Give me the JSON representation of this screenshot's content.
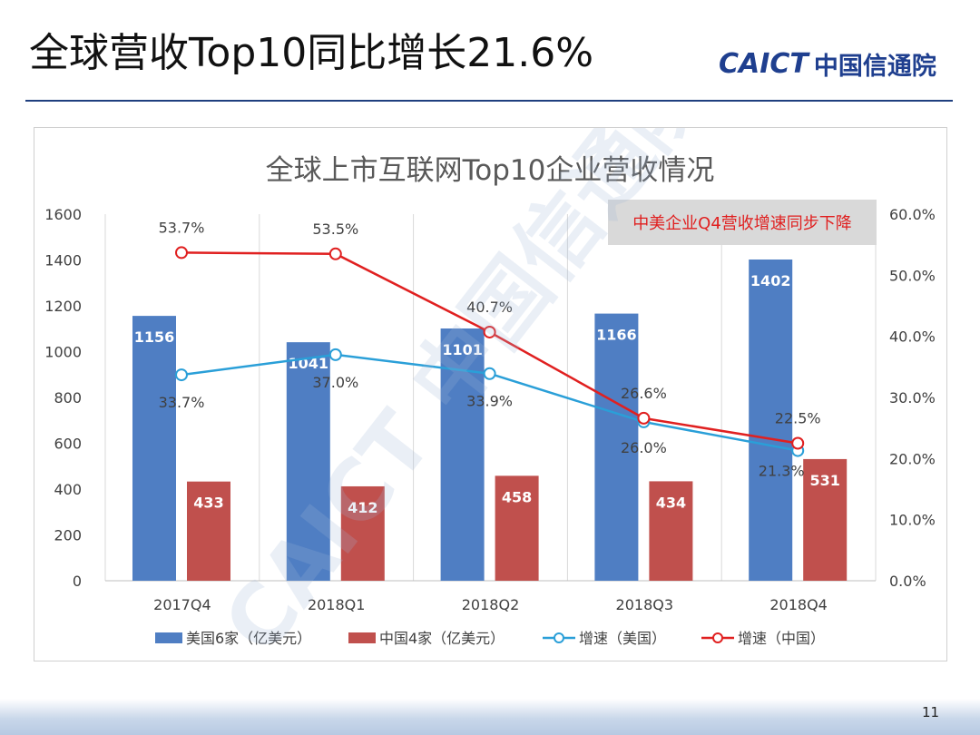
{
  "slide": {
    "title": "全球营收Top10同比增长21.6%",
    "logo_en": "CAICT",
    "logo_cn": "中国信通院",
    "page_number": "11",
    "watermark_text": "CAICT 中国信通院"
  },
  "colors": {
    "us_bar": "#4f7ec3",
    "cn_bar": "#c0504d",
    "us_line": "#2a9fd8",
    "cn_line": "#e02020",
    "annotation_bg": "#d9d9d9",
    "annotation_text": "#e02020"
  },
  "chart_data": {
    "type": "bar",
    "title": "全球上市互联网Top10企业营收情况",
    "annotation": "中美企业Q4营收增速同步下降",
    "categories": [
      "2017Q4",
      "2018Q1",
      "2018Q2",
      "2018Q3",
      "2018Q4"
    ],
    "left_axis": {
      "min": 0,
      "max": 1600,
      "ticks": [
        "0",
        "200",
        "400",
        "600",
        "800",
        "1000",
        "1200",
        "1400",
        "1600"
      ]
    },
    "right_axis": {
      "min": 0,
      "max": 60,
      "ticks": [
        "0.0%",
        "10.0%",
        "20.0%",
        "30.0%",
        "40.0%",
        "50.0%",
        "60.0%"
      ]
    },
    "grid": "vertical category separators",
    "legend_position": "bottom",
    "series": [
      {
        "name": "美国6家（亿美元）",
        "kind": "bar",
        "axis": "left",
        "values": [
          1156,
          1041,
          1101,
          1166,
          1402
        ],
        "labels": [
          "1156",
          "1041",
          "1101",
          "1166",
          "1402"
        ]
      },
      {
        "name": "中国4家（亿美元）",
        "kind": "bar",
        "axis": "left",
        "values": [
          433,
          412,
          458,
          434,
          531
        ],
        "labels": [
          "433",
          "412",
          "458",
          "434",
          "531"
        ]
      },
      {
        "name": "增速（美国）",
        "kind": "line",
        "axis": "right",
        "values": [
          33.7,
          37.0,
          33.9,
          26.0,
          21.3
        ],
        "labels": [
          "33.7%",
          "37.0%",
          "33.9%",
          "26.0%",
          "21.3%"
        ]
      },
      {
        "name": "增速（中国）",
        "kind": "line",
        "axis": "right",
        "values": [
          53.7,
          53.5,
          40.7,
          26.6,
          22.5
        ],
        "labels": [
          "53.7%",
          "53.5%",
          "40.7%",
          "26.6%",
          "22.5%"
        ]
      }
    ]
  }
}
